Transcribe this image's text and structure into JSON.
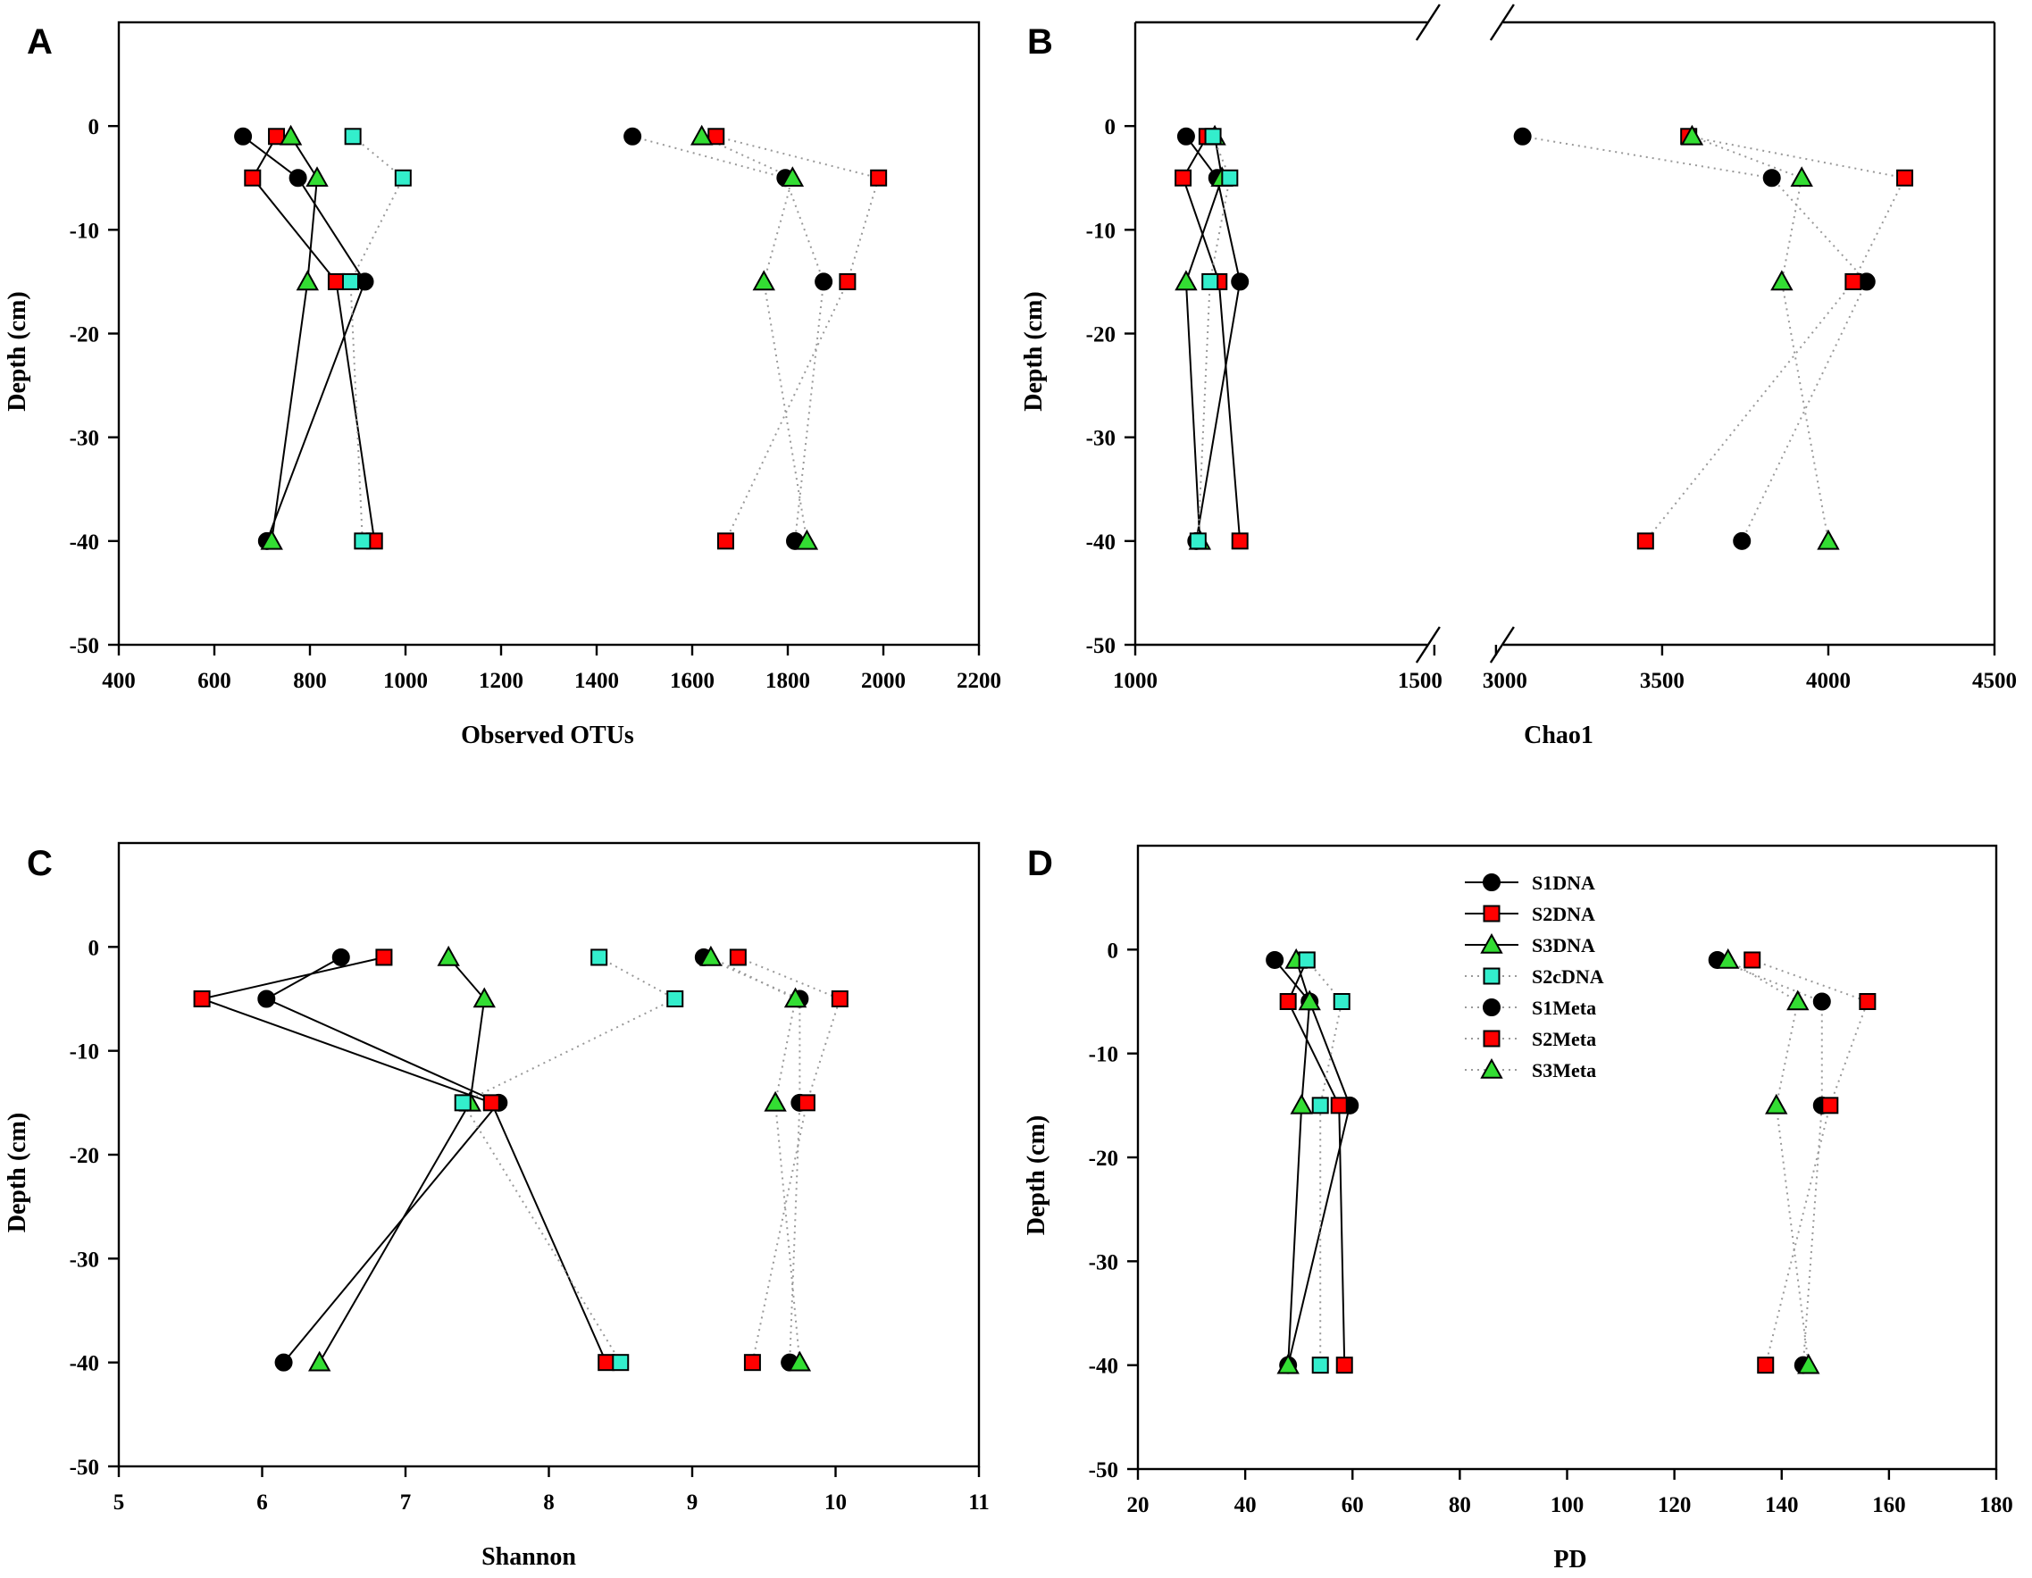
{
  "figure": {
    "legend_title": "",
    "panels": [
      "A",
      "B",
      "C",
      "D"
    ]
  },
  "styles": {
    "S1DNA": {
      "marker": "circle",
      "color": "#000000",
      "line": "solid"
    },
    "S2DNA": {
      "marker": "square",
      "color": "#ff0000",
      "line": "solid"
    },
    "S3DNA": {
      "marker": "triangle",
      "color": "#33dd33",
      "line": "solid"
    },
    "S2cDNA": {
      "marker": "square",
      "color": "#33eecc",
      "line": "dotted"
    },
    "S1Meta": {
      "marker": "circle",
      "color": "#000000",
      "line": "dotted"
    },
    "S2Meta": {
      "marker": "square",
      "color": "#ff0000",
      "line": "dotted"
    },
    "S3Meta": {
      "marker": "triangle",
      "color": "#33dd33",
      "line": "dotted"
    }
  },
  "legend": {
    "placement": "top-center of panel D",
    "entries": [
      "S1DNA",
      "S2DNA",
      "S3DNA",
      "S2cDNA",
      "S1Meta",
      "S2Meta",
      "S3Meta"
    ]
  },
  "chart_data": [
    {
      "panel": "A",
      "type": "line",
      "xlabel": "Observed OTUs",
      "ylabel": "Depth (cm)",
      "xlim": [
        400,
        2200
      ],
      "ylim": [
        -50,
        10
      ],
      "xticks": [
        400,
        600,
        800,
        1000,
        1200,
        1400,
        1600,
        1800,
        2000,
        2200
      ],
      "yticks": [
        0,
        -10,
        -20,
        -30,
        -40,
        -50
      ],
      "depths": [
        -1,
        -5,
        -15,
        -40
      ],
      "series": [
        {
          "name": "S1DNA",
          "values": [
            660,
            775,
            915,
            710
          ]
        },
        {
          "name": "S2DNA",
          "values": [
            730,
            680,
            855,
            935
          ]
        },
        {
          "name": "S3DNA",
          "values": [
            760,
            815,
            795,
            720
          ]
        },
        {
          "name": "S2cDNA",
          "values": [
            890,
            995,
            885,
            910
          ]
        },
        {
          "name": "S1Meta",
          "values": [
            1475,
            1795,
            1875,
            1815
          ]
        },
        {
          "name": "S2Meta",
          "values": [
            1650,
            1990,
            1925,
            1670
          ]
        },
        {
          "name": "S3Meta",
          "values": [
            1620,
            1810,
            1750,
            1840
          ]
        }
      ]
    },
    {
      "panel": "B",
      "type": "line",
      "xlabel": "Chao1",
      "ylabel": "Depth (cm)",
      "xlim": [
        1000,
        4500
      ],
      "axis_break": [
        1500,
        3000
      ],
      "ylim": [
        -50,
        10
      ],
      "xticks": [
        1000,
        1500,
        3000,
        3500,
        4000,
        4500
      ],
      "yticks": [
        0,
        -10,
        -20,
        -30,
        -40,
        -50
      ],
      "depths": [
        -1,
        -5,
        -15,
        -40
      ],
      "series": [
        {
          "name": "S1DNA",
          "values": [
            1085,
            1137,
            1175,
            1102
          ]
        },
        {
          "name": "S2DNA",
          "values": [
            1120,
            1080,
            1140,
            1175
          ]
        },
        {
          "name": "S3DNA",
          "values": [
            1133,
            1145,
            1085,
            1108
          ]
        },
        {
          "name": "S2cDNA",
          "values": [
            1130,
            1158,
            1125,
            1105
          ]
        },
        {
          "name": "S1Meta",
          "values": [
            3080,
            3830,
            4115,
            3740
          ]
        },
        {
          "name": "S2Meta",
          "values": [
            3580,
            4230,
            4075,
            3450
          ]
        },
        {
          "name": "S3Meta",
          "values": [
            3590,
            3920,
            3860,
            4000
          ]
        }
      ]
    },
    {
      "panel": "C",
      "type": "line",
      "xlabel": "Shannon",
      "ylabel": "Depth (cm)",
      "xlim": [
        5,
        11
      ],
      "ylim": [
        -50,
        10
      ],
      "xticks": [
        5,
        6,
        7,
        8,
        9,
        10,
        11
      ],
      "yticks": [
        0,
        -10,
        -20,
        -30,
        -40,
        -50
      ],
      "depths": [
        -1,
        -5,
        -15,
        -40
      ],
      "series": [
        {
          "name": "S1DNA",
          "values": [
            6.55,
            6.03,
            7.65,
            6.15
          ]
        },
        {
          "name": "S2DNA",
          "values": [
            6.85,
            5.58,
            7.6,
            8.4
          ]
        },
        {
          "name": "S3DNA",
          "values": [
            7.3,
            7.55,
            7.45,
            6.4
          ]
        },
        {
          "name": "S2cDNA",
          "values": [
            8.35,
            8.88,
            7.4,
            8.5
          ]
        },
        {
          "name": "S1Meta",
          "values": [
            9.08,
            9.75,
            9.75,
            9.68
          ]
        },
        {
          "name": "S2Meta",
          "values": [
            9.32,
            10.03,
            9.8,
            9.42
          ]
        },
        {
          "name": "S3Meta",
          "values": [
            9.13,
            9.72,
            9.58,
            9.75
          ]
        }
      ]
    },
    {
      "panel": "D",
      "type": "line",
      "xlabel": "PD",
      "ylabel": "Depth (cm)",
      "xlim": [
        20,
        180
      ],
      "ylim": [
        -50,
        10
      ],
      "xticks": [
        20,
        40,
        60,
        80,
        100,
        120,
        140,
        160,
        180
      ],
      "yticks": [
        0,
        -10,
        -20,
        -30,
        -40,
        -50
      ],
      "depths": [
        -1,
        -5,
        -15,
        -40
      ],
      "series": [
        {
          "name": "S1DNA",
          "values": [
            45.5,
            52,
            59.5,
            48
          ]
        },
        {
          "name": "S2DNA",
          "values": [
            51.5,
            48,
            57.5,
            58.5
          ]
        },
        {
          "name": "S3DNA",
          "values": [
            49.5,
            52,
            50.5,
            48
          ]
        },
        {
          "name": "S2cDNA",
          "values": [
            51.5,
            58,
            54,
            54
          ]
        },
        {
          "name": "S1Meta",
          "values": [
            128,
            147.5,
            147.5,
            144
          ]
        },
        {
          "name": "S2Meta",
          "values": [
            134.5,
            156,
            149,
            137
          ]
        },
        {
          "name": "S3Meta",
          "values": [
            130,
            143,
            139,
            145
          ]
        }
      ]
    }
  ]
}
